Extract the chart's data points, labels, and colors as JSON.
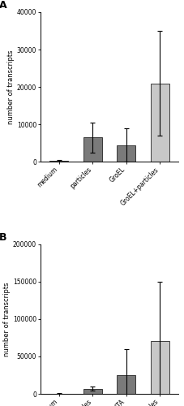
{
  "panel_A": {
    "categories": [
      "medium",
      "particles",
      "GroEL",
      "GroEL+particles"
    ],
    "values": [
      200,
      6500,
      4500,
      21000
    ],
    "errors": [
      200,
      4000,
      4500,
      14000
    ],
    "ylim": [
      0,
      40000
    ],
    "yticks": [
      0,
      10000,
      20000,
      30000,
      40000
    ],
    "ytick_labels": [
      "0",
      "10000",
      "20000",
      "30000",
      "40000"
    ],
    "ylabel": "number of transcripts",
    "label": "A"
  },
  "panel_B": {
    "categories": [
      "medium",
      "particles",
      "LTA",
      "LTA+particles"
    ],
    "values": [
      500,
      7000,
      25000,
      70000
    ],
    "errors": [
      300,
      3000,
      35000,
      80000
    ],
    "ylim": [
      0,
      200000
    ],
    "yticks": [
      0,
      50000,
      100000,
      150000,
      200000
    ],
    "ytick_labels": [
      "0",
      "50000",
      "100000",
      "150000",
      "200000"
    ],
    "ylabel": "number of transcripts",
    "label": "B"
  },
  "bar_width": 0.55,
  "tick_fontsize": 5.5,
  "label_fontsize": 6.0,
  "panel_label_fontsize": 9,
  "bar_colors": [
    "#7a7a7a",
    "#7a7a7a",
    "#7a7a7a",
    "#c8c8c8"
  ],
  "edge_color": "#222222",
  "edge_linewidth": 0.6,
  "error_linewidth": 0.8,
  "error_capsize": 2,
  "spine_linewidth": 0.7
}
